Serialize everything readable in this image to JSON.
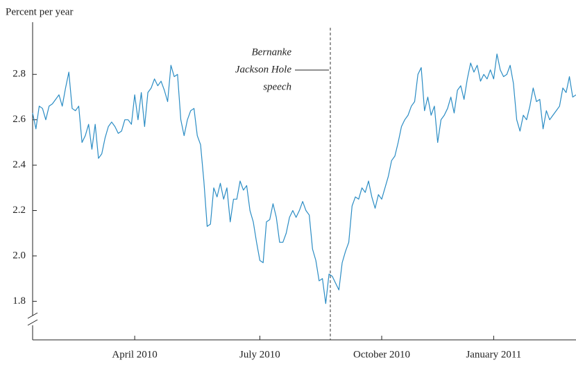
{
  "chart_data": {
    "type": "line",
    "y_axis_label": "Percent per year",
    "annotation": [
      "Bernanke",
      "Jackson Hole",
      "speech"
    ],
    "categories": [
      null,
      null,
      null,
      null,
      null,
      null,
      null,
      null,
      null,
      null,
      null,
      null,
      null,
      null,
      null,
      null,
      null,
      null,
      null,
      null,
      null,
      null,
      null,
      null,
      null,
      null,
      null,
      null,
      null,
      null,
      null,
      "April 2010",
      null,
      null,
      null,
      null,
      null,
      null,
      null,
      null,
      null,
      null,
      null,
      null,
      null,
      null,
      null,
      null,
      null,
      null,
      null,
      null,
      null,
      null,
      null,
      null,
      null,
      null,
      null,
      null,
      null,
      null,
      null,
      null,
      null,
      null,
      null,
      null,
      null,
      "July 2010",
      null,
      null,
      null,
      null,
      null,
      null,
      null,
      null,
      null,
      null,
      null,
      null,
      null,
      null,
      null,
      null,
      null,
      null,
      null,
      null,
      null,
      null,
      null,
      null,
      null,
      null,
      null,
      null,
      null,
      null,
      null,
      null,
      null,
      null,
      null,
      null,
      "October 2010",
      null,
      null,
      null,
      null,
      null,
      null,
      null,
      null,
      null,
      null,
      null,
      null,
      null,
      null,
      null,
      null,
      null,
      null,
      null,
      null,
      null,
      null,
      null,
      null,
      null,
      null,
      null,
      null,
      null,
      null,
      null,
      null,
      null,
      "January 2011",
      null,
      null,
      null,
      null,
      null,
      null,
      null,
      null,
      null,
      null,
      null,
      null,
      null,
      null,
      null,
      null,
      null,
      null,
      null,
      null,
      null,
      null,
      null,
      null,
      null
    ],
    "values": [
      2.63,
      2.56,
      2.66,
      2.65,
      2.6,
      2.66,
      2.67,
      2.69,
      2.71,
      2.66,
      2.74,
      2.81,
      2.65,
      2.64,
      2.66,
      2.5,
      2.53,
      2.58,
      2.47,
      2.58,
      2.43,
      2.45,
      2.52,
      2.57,
      2.59,
      2.57,
      2.54,
      2.55,
      2.6,
      2.6,
      2.58,
      2.71,
      2.6,
      2.72,
      2.57,
      2.72,
      2.74,
      2.78,
      2.75,
      2.77,
      2.73,
      2.68,
      2.84,
      2.79,
      2.8,
      2.6,
      2.53,
      2.6,
      2.64,
      2.65,
      2.53,
      2.49,
      2.33,
      2.13,
      2.14,
      2.3,
      2.26,
      2.32,
      2.25,
      2.3,
      2.15,
      2.25,
      2.25,
      2.33,
      2.29,
      2.31,
      2.2,
      2.15,
      2.06,
      1.98,
      1.97,
      2.15,
      2.16,
      2.23,
      2.17,
      2.06,
      2.06,
      2.1,
      2.17,
      2.2,
      2.17,
      2.2,
      2.24,
      2.2,
      2.18,
      2.03,
      1.98,
      1.89,
      1.9,
      1.79,
      1.92,
      1.91,
      1.88,
      1.85,
      1.97,
      2.02,
      2.06,
      2.22,
      2.26,
      2.25,
      2.3,
      2.28,
      2.33,
      2.26,
      2.21,
      2.27,
      2.25,
      2.3,
      2.35,
      2.42,
      2.44,
      2.5,
      2.57,
      2.6,
      2.62,
      2.66,
      2.68,
      2.8,
      2.83,
      2.64,
      2.7,
      2.62,
      2.66,
      2.5,
      2.6,
      2.62,
      2.65,
      2.7,
      2.63,
      2.73,
      2.75,
      2.69,
      2.78,
      2.85,
      2.81,
      2.84,
      2.77,
      2.8,
      2.78,
      2.82,
      2.78,
      2.89,
      2.82,
      2.79,
      2.8,
      2.84,
      2.76,
      2.6,
      2.55,
      2.62,
      2.6,
      2.66,
      2.74,
      2.68,
      2.69,
      2.56,
      2.64,
      2.6,
      2.62,
      2.64,
      2.66,
      2.74,
      2.72,
      2.79,
      2.7,
      2.71
    ],
    "color": "#2a8cc4",
    "ylim": [
      1.63,
      3.03
    ],
    "yticks": [
      1.8,
      {
        "value": 2,
        "label": "2.0"
      },
      2.2,
      2.4,
      2.6,
      2.8
    ],
    "grid": false
  }
}
